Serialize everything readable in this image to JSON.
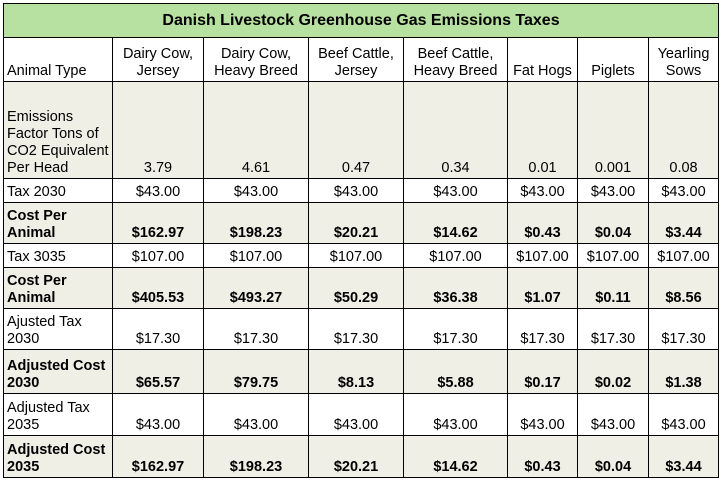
{
  "title": "Danish Livestock Greenhouse Gas Emissions Taxes",
  "header": {
    "label": "Animal Type",
    "columns": [
      "Dairy Cow, Jersey",
      "Dairy Cow, Heavy Breed",
      "Beef Cattle, Jersey",
      "Beef Cattle, Heavy Breed",
      "Fat Hogs",
      "Piglets",
      "Yearling Sows"
    ]
  },
  "rows": [
    {
      "label": "Emissions Factor Tons of CO2 Equivalent Per Head",
      "values": [
        "3.79",
        "4.61",
        "0.47",
        "0.34",
        "0.01",
        "0.001",
        "0.08"
      ]
    },
    {
      "label": "Tax 2030",
      "values": [
        "$43.00",
        "$43.00",
        "$43.00",
        "$43.00",
        "$43.00",
        "$43.00",
        "$43.00"
      ]
    },
    {
      "label": "Cost Per Animal",
      "values": [
        "$162.97",
        "$198.23",
        "$20.21",
        "$14.62",
        "$0.43",
        "$0.04",
        "$3.44"
      ]
    },
    {
      "label": "Tax 3035",
      "values": [
        "$107.00",
        "$107.00",
        "$107.00",
        "$107.00",
        "$107.00",
        "$107.00",
        "$107.00"
      ]
    },
    {
      "label": "Cost Per Animal",
      "values": [
        "$405.53",
        "$493.27",
        "$50.29",
        "$36.38",
        "$1.07",
        "$0.11",
        "$8.56"
      ]
    },
    {
      "label": "Ajusted Tax 2030",
      "values": [
        "$17.30",
        "$17.30",
        "$17.30",
        "$17.30",
        "$17.30",
        "$17.30",
        "$17.30"
      ]
    },
    {
      "label": "Adjusted Cost 2030",
      "values": [
        "$65.57",
        "$79.75",
        "$8.13",
        "$5.88",
        "$0.17",
        "$0.02",
        "$1.38"
      ]
    },
    {
      "label": "Adjusted Tax 2035",
      "values": [
        "$43.00",
        "$43.00",
        "$43.00",
        "$43.00",
        "$43.00",
        "$43.00",
        "$43.00"
      ]
    },
    {
      "label": "Adjusted Cost 2035",
      "values": [
        "$162.97",
        "$198.23",
        "$20.21",
        "$14.62",
        "$0.43",
        "$0.04",
        "$3.44"
      ]
    }
  ],
  "colors": {
    "title_bg": "#b7e1a1",
    "shaded_row_bg": "#efefe6",
    "border": "#000000"
  }
}
